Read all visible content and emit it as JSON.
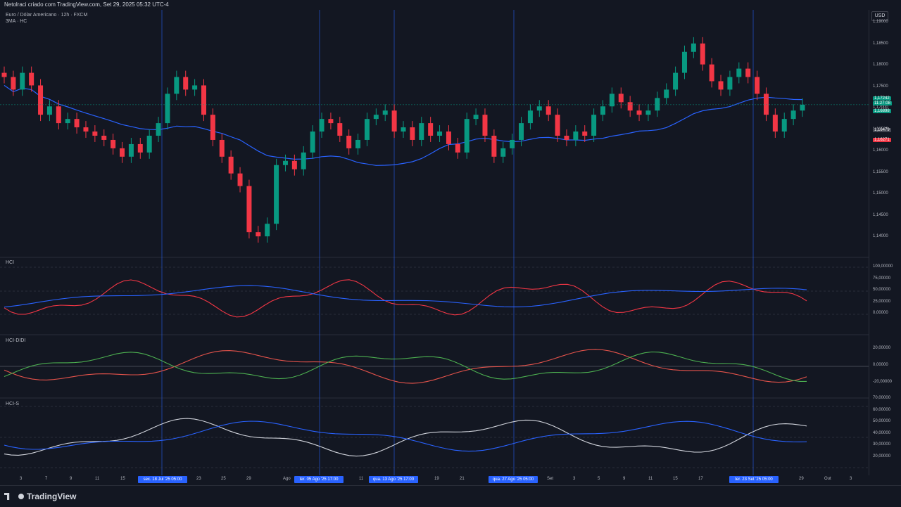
{
  "header": {
    "title": "Netolraci criado com TradingView.com, Set 29, 2025 05:32 UTC-4"
  },
  "legend": {
    "symbol": "Euro / Dólar Americano · 12h · FXCM",
    "indicator": "3MA · HC"
  },
  "panes": {
    "hci": "HCI",
    "hci_didi": "HCI-DIDI",
    "hci_s": "HCI-S"
  },
  "axis": {
    "currency_button": "USD",
    "price_ticks": [
      "1,19000",
      "1,18500",
      "1,18000",
      "1,17500",
      "1,17000",
      "1,16500",
      "1,16000",
      "1,15500",
      "1,15000",
      "1,14500",
      "1,14000"
    ],
    "price_tags": [
      {
        "text": "1,17242",
        "color": "#089981"
      },
      {
        "text": "11:27:08",
        "color": "#089981"
      },
      {
        "text": "1,16898",
        "color": "#089981"
      },
      {
        "text": "1,16479",
        "color": "#434651"
      },
      {
        "text": "1,16271",
        "color": "#f23645"
      }
    ],
    "hci_ticks": [
      "100,00000",
      "75,00000",
      "50,00000",
      "25,00000",
      "0,00000"
    ],
    "didi_ticks": [
      "20,00000",
      "0,00000",
      "-20,00000"
    ],
    "hcis_ticks": [
      "70,00000",
      "60,00000",
      "50,00000",
      "40,00000",
      "30,00000",
      "20,00000"
    ]
  },
  "time_axis": {
    "labels": [
      "3",
      "7",
      "9",
      "11",
      "15",
      "23",
      "25",
      "29",
      "Ago",
      "11",
      "19",
      "21",
      "Set",
      "3",
      "5",
      "9",
      "11",
      "15",
      "17",
      "29",
      "Out",
      "3"
    ],
    "highlights": [
      "sex. 18 Jul '25  05:00",
      "ter. 05 Ago '25  17:00",
      "qua. 13 Ago '25  17:00",
      "qua. 27 Ago '25  05:00",
      "ter. 23 Set '25  05:00"
    ]
  },
  "footer": {
    "brand": "TradingView"
  },
  "colors": {
    "up": "#089981",
    "down": "#f23645",
    "ma": "#2962ff",
    "grid_vline": "#2962ff",
    "background": "#131722"
  },
  "chart_data": {
    "type": "candlestick",
    "symbol": "EURUSD",
    "timeframe": "12h",
    "ylim": [
      1.138,
      1.192
    ],
    "closes": [
      1.179,
      1.176,
      1.18,
      1.177,
      1.17,
      1.172,
      1.168,
      1.169,
      1.167,
      1.166,
      1.165,
      1.164,
      1.162,
      1.16,
      1.163,
      1.161,
      1.165,
      1.168,
      1.175,
      1.179,
      1.176,
      1.177,
      1.17,
      1.164,
      1.16,
      1.156,
      1.153,
      1.142,
      1.141,
      1.144,
      1.158,
      1.159,
      1.157,
      1.161,
      1.166,
      1.169,
      1.168,
      1.165,
      1.162,
      1.164,
      1.169,
      1.17,
      1.171,
      1.166,
      1.167,
      1.164,
      1.168,
      1.165,
      1.166,
      1.163,
      1.161,
      1.169,
      1.17,
      1.165,
      1.16,
      1.162,
      1.164,
      1.168,
      1.171,
      1.172,
      1.17,
      1.165,
      1.164,
      1.166,
      1.165,
      1.17,
      1.172,
      1.175,
      1.173,
      1.171,
      1.17,
      1.171,
      1.174,
      1.176,
      1.18,
      1.185,
      1.187,
      1.182,
      1.178,
      1.176,
      1.179,
      1.181,
      1.179,
      1.175,
      1.17,
      1.166,
      1.169,
      1.171,
      1.1724
    ]
  }
}
